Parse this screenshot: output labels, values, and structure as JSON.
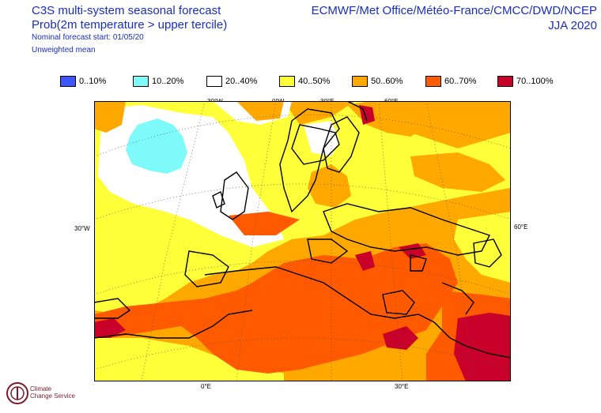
{
  "header": {
    "title": "C3S multi-system seasonal forecast",
    "variable": "Prob(2m temperature > upper tercile)",
    "start": "Nominal forecast start: 01/05/20",
    "mean": "Unweighted mean",
    "centres": "ECMWF/Met Office/Météo-France/CMCC/DWD/NCEP",
    "season": "JJA 2020"
  },
  "legend": [
    {
      "label": "0..10%",
      "color": "#3c55ff"
    },
    {
      "label": "10..20%",
      "color": "#7ffafa"
    },
    {
      "label": "20..40%",
      "color": "#ffffff"
    },
    {
      "label": "40..50%",
      "color": "#ffff3a"
    },
    {
      "label": "50..60%",
      "color": "#ffa800"
    },
    {
      "label": "60..70%",
      "color": "#ff5a00"
    },
    {
      "label": "70..100%",
      "color": "#c8002a"
    }
  ],
  "map": {
    "top_labels": [
      "30°W",
      "0°W",
      "30°E",
      "60°E"
    ],
    "left_label": "30°W",
    "right_label": "60°E",
    "bottom_labels": [
      "0°E",
      "30°E"
    ]
  },
  "logo": {
    "line1": "Climate",
    "line2": "Change Service"
  }
}
